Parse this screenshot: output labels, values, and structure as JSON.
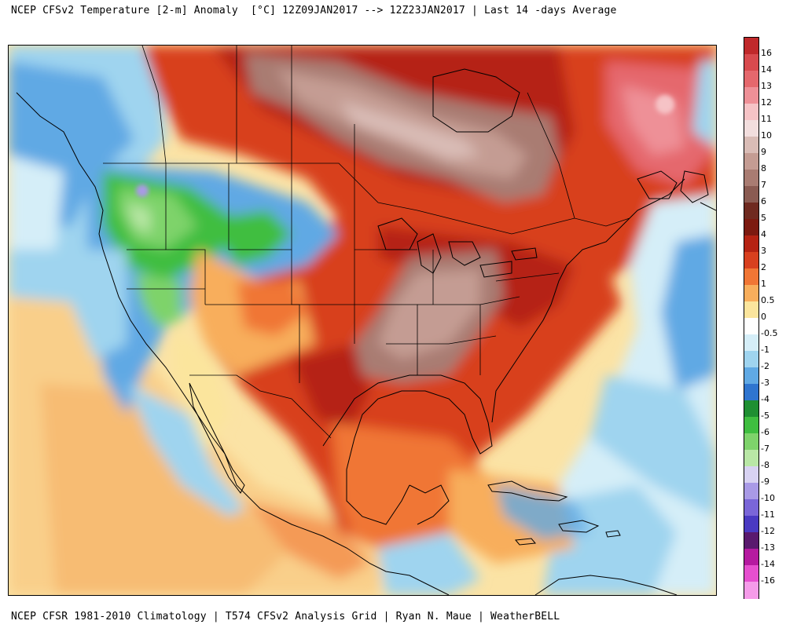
{
  "title": "NCEP CFSv2 Temperature [2-m] Anomaly  [°C] 12Z09JAN2017 --> 12Z23JAN2017 | Last 14 -days Average",
  "footer": "NCEP CFSR 1981-2010 Climatology | T574 CFSv2 Analysis Grid | Ryan N. Maue | WeatherBELL",
  "colorbar": {
    "unit": "°C",
    "labels": [
      "16",
      "14",
      "13",
      "12",
      "11",
      "10",
      "9",
      "8",
      "7",
      "6",
      "5",
      "4",
      "3",
      "2",
      "1",
      "0.5",
      "0",
      "-0.5",
      "-1",
      "-2",
      "-3",
      "-4",
      "-5",
      "-6",
      "-7",
      "-8",
      "-9",
      "-10",
      "-11",
      "-12",
      "-13",
      "-14",
      "-16"
    ],
    "colors": [
      "#c0292b",
      "#d84a4e",
      "#e5686d",
      "#ee9097",
      "#f6c3c6",
      "#f2dede",
      "#d9bcb6",
      "#c49c93",
      "#a97c72",
      "#8a5b52",
      "#6f2a20",
      "#7c1a10",
      "#b52313",
      "#d8401f",
      "#f07635",
      "#f8ae5c",
      "#fbe59d",
      "#ffffff",
      "#d5eef8",
      "#9fd4ef",
      "#60a9e4",
      "#2f75cf",
      "#1f8f32",
      "#3fbe40",
      "#7ed36b",
      "#b9e7a6",
      "#d8d2f2",
      "#a99ae6",
      "#7a66d8",
      "#4a3ac2",
      "#5a1a6e",
      "#b51aa0",
      "#e64fcf",
      "#f59be9"
    ]
  }
}
